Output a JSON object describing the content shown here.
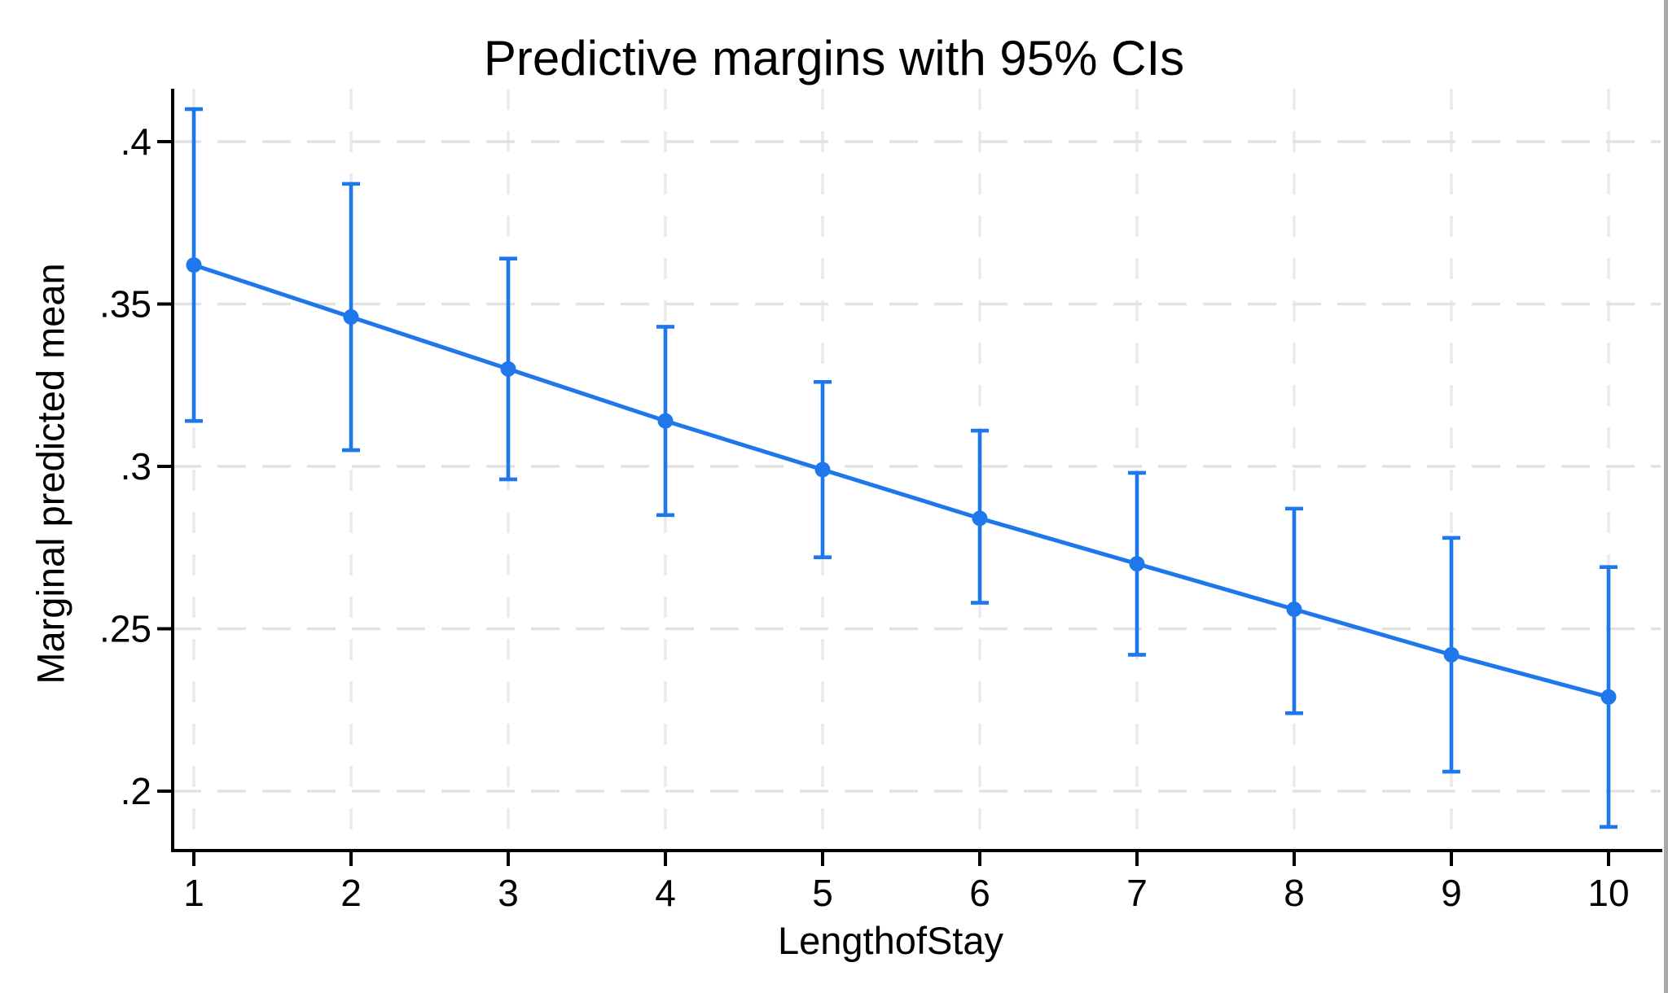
{
  "title": "Predictive margins with 95% CIs",
  "chart_data": {
    "type": "line",
    "title": "Predictive margins with 95% CIs",
    "xlabel": "LengthofStay",
    "ylabel": "Marginal predicted mean",
    "ci_level": "95%",
    "legend_position": "none",
    "grid": true,
    "x": [
      1,
      2,
      3,
      4,
      5,
      6,
      7,
      8,
      9,
      10
    ],
    "series": [
      {
        "name": "Marginal predicted mean",
        "values": [
          0.362,
          0.346,
          0.33,
          0.314,
          0.299,
          0.284,
          0.27,
          0.256,
          0.242,
          0.229
        ]
      }
    ],
    "ci_lower": [
      0.314,
      0.305,
      0.296,
      0.285,
      0.272,
      0.258,
      0.242,
      0.224,
      0.206,
      0.189
    ],
    "ci_upper": [
      0.41,
      0.387,
      0.364,
      0.343,
      0.326,
      0.311,
      0.298,
      0.287,
      0.278,
      0.269
    ],
    "x_ticks": [
      "1",
      "2",
      "3",
      "4",
      "5",
      "6",
      "7",
      "8",
      "9",
      "10"
    ],
    "y_ticks": [
      {
        "value": 0.2,
        "label": ".2"
      },
      {
        "value": 0.25,
        "label": ".25"
      },
      {
        "value": 0.3,
        "label": ".3"
      },
      {
        "value": 0.35,
        "label": ".35"
      },
      {
        "value": 0.4,
        "label": ".4"
      }
    ],
    "ylim": [
      0.182,
      0.422
    ],
    "xlim": [
      0.87,
      10.35
    ],
    "colors": {
      "series": "#1E78EB",
      "grid_horizontal": "#e2e2e2",
      "grid_vertical": "#eaeaea",
      "axis": "#000000",
      "background": "#ffffff",
      "window_edge": "#a9a9a9"
    }
  }
}
